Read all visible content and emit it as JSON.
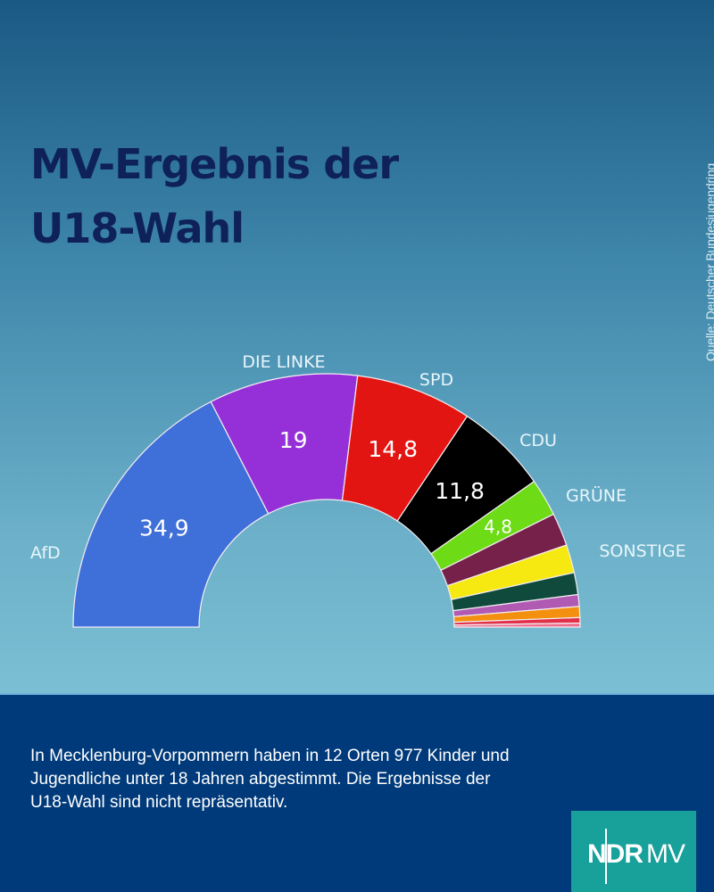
{
  "title": "MV-Ergebnis der U18-Wahl",
  "source": "Quelle: Deutscher Bundesjugendring",
  "footer_text": "In Mecklenburg-Vorpommern haben in 12 Orten 977 Kinder und Jugendliche unter 18 Jahren abgestimmt. Die Ergebnisse der U18-Wahl sind nicht repräsentativ.",
  "logo": {
    "ndr": "NDR",
    "mv": "MV"
  },
  "chart_data": {
    "type": "pie",
    "variant": "half-donut",
    "title": "MV-Ergebnis der U18-Wahl",
    "unit": "%",
    "slices": [
      {
        "name": "AfD",
        "value": 34.9,
        "label": "34,9",
        "color": "#3f6fd8",
        "show_value": true,
        "show_name": true
      },
      {
        "name": "DIE LINKE",
        "value": 19.0,
        "label": "19",
        "color": "#9530d8",
        "show_value": true,
        "show_name": true
      },
      {
        "name": "SPD",
        "value": 14.8,
        "label": "14,8",
        "color": "#e31512",
        "show_value": true,
        "show_name": true
      },
      {
        "name": "CDU",
        "value": 11.8,
        "label": "11,8",
        "color": "#000000",
        "show_value": true,
        "show_name": true
      },
      {
        "name": "GRÜNE",
        "value": 4.8,
        "label": "4,8",
        "color": "#6ddc16",
        "show_value": true,
        "show_name": true,
        "value_color": "#d8f5b5"
      },
      {
        "name": "Sonstige 1",
        "value": 4.2,
        "label": "",
        "color": "#76214a",
        "show_value": false,
        "show_name": false
      },
      {
        "name": "Sonstige 2",
        "value": 3.6,
        "label": "",
        "color": "#f6e811",
        "show_value": false,
        "show_name": false
      },
      {
        "name": "Sonstige 3",
        "value": 2.8,
        "label": "",
        "color": "#0f4a3c",
        "show_value": false,
        "show_name": false
      },
      {
        "name": "Sonstige 4",
        "value": 1.5,
        "label": "",
        "color": "#b05ab3",
        "show_value": false,
        "show_name": false
      },
      {
        "name": "Sonstige 5",
        "value": 1.4,
        "label": "",
        "color": "#f4900f",
        "show_value": false,
        "show_name": false
      },
      {
        "name": "Sonstige 6",
        "value": 0.7,
        "label": "",
        "color": "#e0304a",
        "show_value": false,
        "show_name": false
      },
      {
        "name": "Sonstige 7",
        "value": 0.5,
        "label": "",
        "color": "#ee6f8f",
        "show_value": false,
        "show_name": false
      }
    ],
    "group_label": "SONSTIGE",
    "total": 100
  }
}
